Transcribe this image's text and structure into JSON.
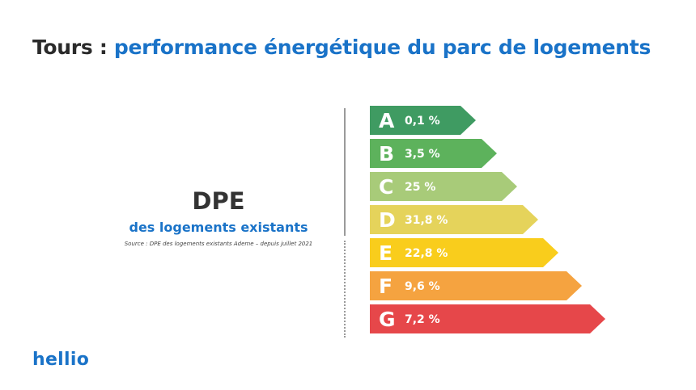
{
  "title": {
    "prefix": "Tours : ",
    "highlight": "performance énergétique du parc de logements"
  },
  "panel": {
    "heading": "DPE",
    "subheading": "des logements existants",
    "source": "Source : DPE des logements existants Ademe – depuis juillet 2021"
  },
  "brand": {
    "logo_text": "hellio"
  },
  "colors": {
    "title_prefix": "#2b2b2b",
    "accent": "#1a73c8",
    "bar_label_text": "#ffffff"
  },
  "chart_data": {
    "type": "bar",
    "orientation": "horizontal",
    "categories": [
      "A",
      "B",
      "C",
      "D",
      "E",
      "F",
      "G"
    ],
    "value_labels": [
      "0,1 %",
      "3,5 %",
      "25 %",
      "31,8 %",
      "22,8 %",
      "9,6 %",
      "7,2 %"
    ],
    "colors": [
      "#3f9b62",
      "#5db25c",
      "#a8cb79",
      "#e5d35b",
      "#f9cd1c",
      "#f5a340",
      "#e6474a"
    ]
  }
}
